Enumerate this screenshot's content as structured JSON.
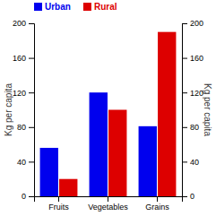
{
  "chart_data": {
    "type": "bar",
    "categories": [
      "Fruits",
      "Vegetables",
      "Grains"
    ],
    "series": [
      {
        "name": "Urban",
        "color": "#0000ee",
        "values": [
          56,
          120,
          81
        ]
      },
      {
        "name": "Rural",
        "color": "#dd0000",
        "values": [
          20,
          100,
          190
        ]
      }
    ],
    "ylabel": "Kg per capita",
    "y2label": "Kg per capita",
    "ylim": [
      0,
      200
    ],
    "yticks": [
      0,
      40,
      80,
      120,
      160,
      200
    ],
    "y2lim": [
      0,
      200
    ],
    "y2ticks": [
      0,
      40,
      80,
      120,
      160,
      200
    ],
    "legend": "top"
  }
}
